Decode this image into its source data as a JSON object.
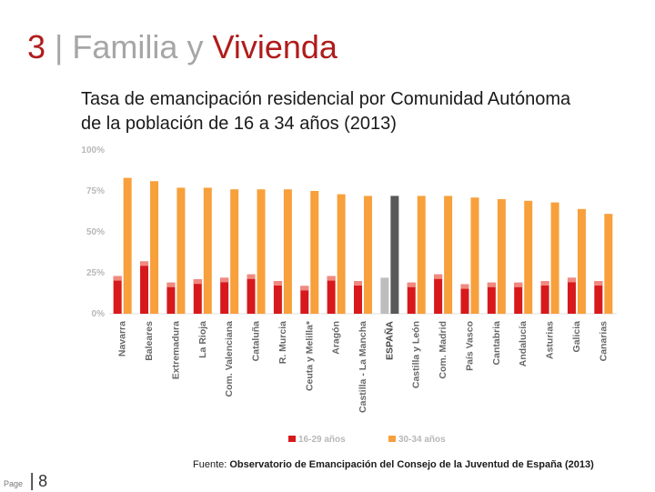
{
  "slide": {
    "number": "3",
    "separator": "|",
    "title_part1": "Familia y",
    "title_part2": "Vivienda",
    "subtitle_line1": "Tasa de emancipación residencial por Comunidad Autónoma",
    "subtitle_line2": "de la población de 16 a 34 años (2013)",
    "source_label": "Fuente:",
    "source_text": "Observatorio de Emancipación del Consejo de la Juventud de España (2013)",
    "page_label": "Page",
    "page_bar": "|",
    "page_number": "8"
  },
  "colors": {
    "red": "#d7191c",
    "red_light": "#f08a80",
    "orange": "#f7a03c",
    "gray_dark": "#595959",
    "gray_light": "#bdbdbd",
    "axis_text": "#b8b8b8",
    "label_text": "#666666"
  },
  "chart_data": {
    "type": "bar",
    "categories": [
      "Navarra",
      "Baleares",
      "Extremadura",
      "La Rioja",
      "Com. Valenciana",
      "Cataluña",
      "R. Murcia",
      "Ceuta y Melilla*",
      "Aragón",
      "Castilla - La Mancha",
      "ESPAÑA",
      "Castilla y León",
      "Com. Madrid",
      "País Vasco",
      "Cantabria",
      "Andalucía",
      "Asturias",
      "Galicia",
      "Canarias"
    ],
    "highlight_index": 10,
    "series": [
      {
        "name": "16-29 años",
        "values": [
          23,
          32,
          19,
          21,
          22,
          24,
          20,
          17,
          23,
          20,
          22,
          19,
          24,
          18,
          19,
          19,
          20,
          22,
          20
        ]
      },
      {
        "name": "30-34 años",
        "values": [
          83,
          81,
          77,
          77,
          76,
          76,
          76,
          75,
          73,
          72,
          72,
          72,
          72,
          71,
          70,
          69,
          68,
          64,
          61
        ]
      }
    ],
    "yticks": [
      "0%",
      "25%",
      "50%",
      "75%",
      "100%"
    ],
    "ylim": [
      0,
      100
    ],
    "legend_position": "bottom"
  }
}
